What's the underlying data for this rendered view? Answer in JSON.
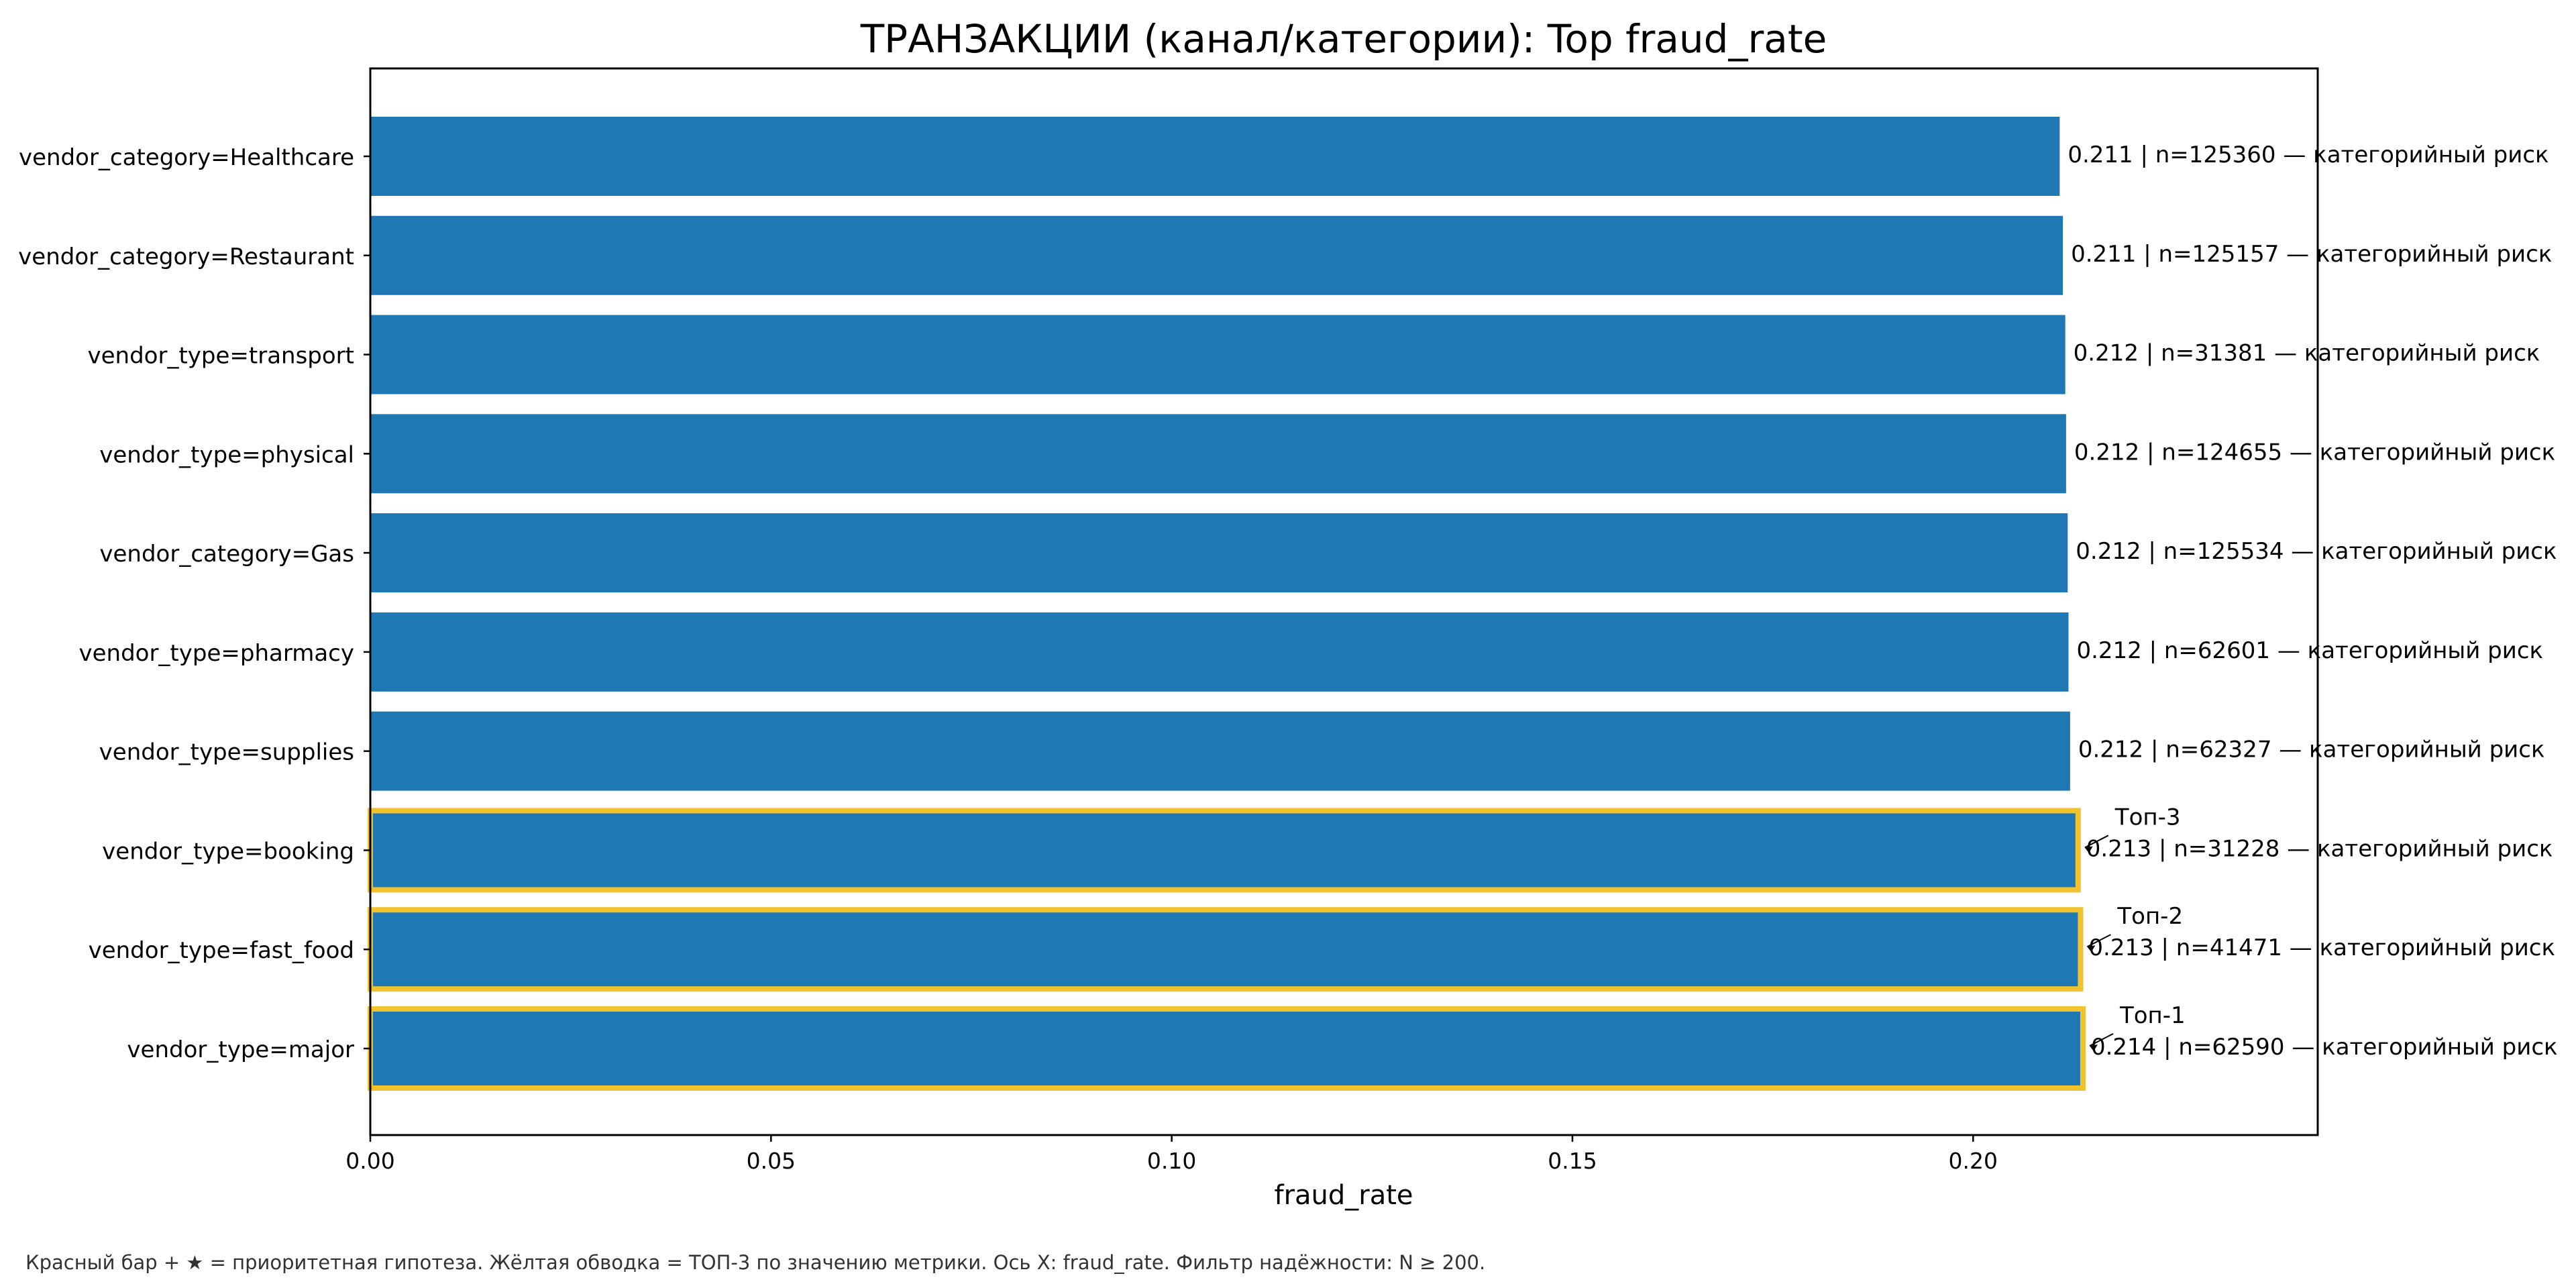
{
  "chart_data": {
    "type": "bar",
    "orientation": "horizontal",
    "title": "ТРАНЗАКЦИИ (канал/категории): Top fraud_rate",
    "xlabel": "fraud_rate",
    "ylabel": "",
    "xlim": [
      0,
      0.243
    ],
    "xticks": [
      0.0,
      0.05,
      0.1,
      0.15,
      0.2
    ],
    "xtick_labels": [
      "0.00",
      "0.05",
      "0.10",
      "0.15",
      "0.20"
    ],
    "grid": false,
    "bar_color": "#1f77b4",
    "highlight_color": "#f2c12e",
    "categories": [
      "vendor_category=Healthcare",
      "vendor_category=Restaurant",
      "vendor_type=transport",
      "vendor_type=physical",
      "vendor_category=Gas",
      "vendor_type=pharmacy",
      "vendor_type=supplies",
      "vendor_type=booking",
      "vendor_type=fast_food",
      "vendor_type=major"
    ],
    "values": [
      0.2108,
      0.2112,
      0.2115,
      0.2116,
      0.2118,
      0.2119,
      0.2121,
      0.2131,
      0.2134,
      0.2137
    ],
    "data_labels": [
      "0.211 | n=125360  —  категорийный риск",
      "0.211 | n=125157  —  категорийный риск",
      "0.212 | n=31381  —  категорийный риск",
      "0.212 | n=124655  —  категорийный риск",
      "0.212 | n=125534  —  категорийный риск",
      "0.212 | n=62601  —  категорийный риск",
      "0.212 | n=62327  —  категорийный риск",
      "0.213 | n=31228  —  категорийный риск",
      "0.213 | n=41471  —  категорийный риск",
      "0.214 | n=62590  —  категорийный риск"
    ],
    "highlighted": [
      false,
      false,
      false,
      false,
      false,
      false,
      false,
      true,
      true,
      true
    ],
    "annotations": [
      "",
      "",
      "",
      "",
      "",
      "",
      "",
      "Топ-3",
      "Топ-2",
      "Топ-1"
    ],
    "footnote": "Красный бар + ★ = приоритетная гипотеза.  Жёлтая обводка = ТОП-3 по значению метрики.  Ось X: fraud_rate.  Фильтр надёжности: N ≥ 200."
  }
}
